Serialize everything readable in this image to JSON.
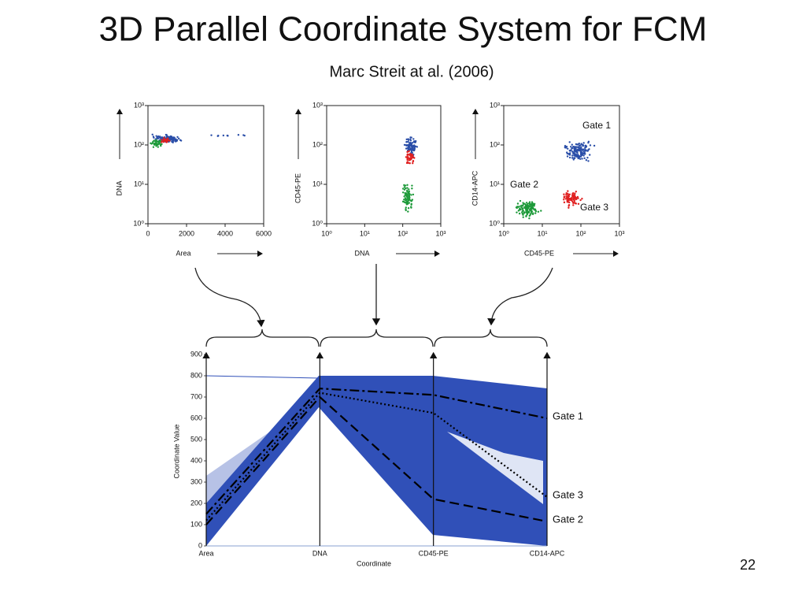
{
  "title": "3D Parallel Coordinate System for FCM",
  "subtitle": "Marc Streit at al. (2006)",
  "page_number": "22",
  "chart_data": [
    {
      "type": "scatter",
      "xlabel": "Area",
      "ylabel": "DNA",
      "xlim": [
        0,
        6000
      ],
      "xticks": [
        0,
        2000,
        4000,
        6000
      ],
      "ylim": [
        1,
        1000
      ],
      "log_y": true,
      "yticks": [
        {
          "value": 1,
          "label": "10⁰"
        },
        {
          "value": 10,
          "label": "10¹"
        },
        {
          "value": 100,
          "label": "10²"
        },
        {
          "value": 1000,
          "label": "10³"
        }
      ]
    },
    {
      "type": "scatter",
      "xlabel": "DNA",
      "ylabel": "CD45-PE",
      "xlim": [
        1,
        1000
      ],
      "log_x": true,
      "xticks": [
        {
          "value": 1,
          "label": "10⁰"
        },
        {
          "value": 10,
          "label": "10¹"
        },
        {
          "value": 100,
          "label": "10²"
        },
        {
          "value": 1000,
          "label": "10³"
        }
      ],
      "ylim": [
        1,
        1000
      ],
      "log_y": true,
      "yticks": [
        {
          "value": 1,
          "label": "10⁰"
        },
        {
          "value": 10,
          "label": "10¹"
        },
        {
          "value": 100,
          "label": "10²"
        },
        {
          "value": 1000,
          "label": "10³"
        }
      ]
    },
    {
      "type": "scatter",
      "xlabel": "CD45-PE",
      "ylabel": "CD14-APC",
      "xlim": [
        1,
        1000
      ],
      "log_x": true,
      "xticks": [
        {
          "value": 1,
          "label": "10⁰"
        },
        {
          "value": 10,
          "label": "10¹"
        },
        {
          "value": 100,
          "label": "10²"
        },
        {
          "value": 1000,
          "label": "10³"
        }
      ],
      "ylim": [
        1,
        1000
      ],
      "log_y": true,
      "yticks": [
        {
          "value": 1,
          "label": "10⁰"
        },
        {
          "value": 10,
          "label": "10¹"
        },
        {
          "value": 100,
          "label": "10²"
        },
        {
          "value": 1000,
          "label": "10³"
        }
      ],
      "annotations": [
        "Gate 1",
        "Gate 2",
        "Gate 3"
      ]
    },
    {
      "type": "line",
      "xlabel": "Coordinate",
      "ylabel": "Coordinate Value",
      "categories": [
        "Area",
        "DNA",
        "CD45-PE",
        "CD14-APC"
      ],
      "ylim": [
        0,
        900
      ],
      "yticks": [
        0,
        100,
        200,
        300,
        400,
        500,
        600,
        700,
        800,
        900
      ],
      "series": [
        {
          "name": "Gate 1",
          "color": "#000000",
          "dash": "dash-dot",
          "values": [
            150,
            740,
            710,
            600
          ]
        },
        {
          "name": "Gate 3",
          "color": "#000000",
          "dash": "dotted",
          "values": [
            120,
            720,
            625,
            230
          ]
        },
        {
          "name": "Gate 2",
          "color": "#000000",
          "dash": "dashed",
          "values": [
            100,
            700,
            220,
            115
          ]
        }
      ]
    }
  ]
}
